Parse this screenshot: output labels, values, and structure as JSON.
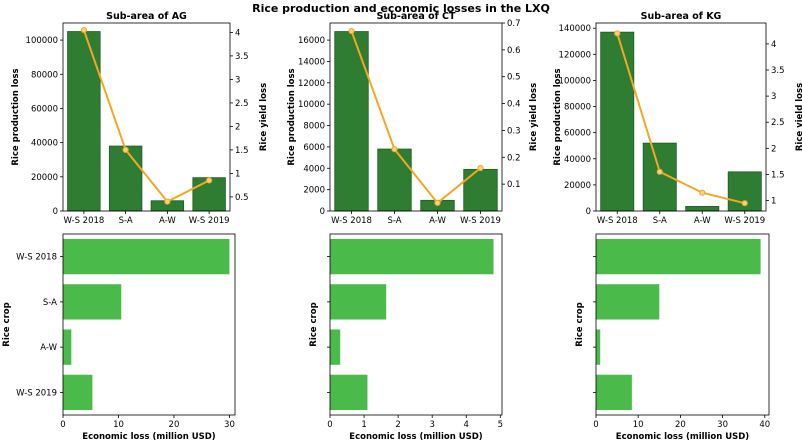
{
  "title": "Rice production and economic losses in the LXQ",
  "colors": {
    "bar_dark": "#2e7d32",
    "bar_dark_edge": "#1b5e20",
    "bar_light": "#4aba4a",
    "line": "#f5a623",
    "marker_face": "#f7d08a"
  },
  "chart_data": [
    {
      "type": "bar",
      "title": "Sub-area of AG",
      "categories": [
        "W-S 2018",
        "S-A",
        "A-W",
        "W-S 2019"
      ],
      "values": [
        105000,
        38000,
        6000,
        19500
      ],
      "ylabel": "Rice production loss",
      "ylim": [
        0,
        110000
      ],
      "yticks": [
        0,
        20000,
        40000,
        60000,
        80000,
        100000
      ],
      "secondary": {
        "type": "line",
        "ylabel": "Rice yield loss",
        "values": [
          4.05,
          1.5,
          0.4,
          0.85
        ],
        "ylim": [
          0.2,
          4.2
        ],
        "yticks": [
          0.5,
          1.0,
          1.5,
          2.0,
          2.5,
          3.0,
          3.5,
          4.0
        ]
      }
    },
    {
      "type": "bar",
      "title": "Sub-area of CT",
      "categories": [
        "W-S 2018",
        "S-A",
        "A-W",
        "W-S 2019"
      ],
      "values": [
        16800,
        5800,
        1000,
        3900
      ],
      "ylabel": "Rice production loss",
      "ylim": [
        0,
        17600
      ],
      "yticks": [
        0,
        2000,
        4000,
        6000,
        8000,
        10000,
        12000,
        14000,
        16000
      ],
      "secondary": {
        "type": "line",
        "ylabel": "Rice yield loss",
        "values": [
          0.67,
          0.23,
          0.03,
          0.16
        ],
        "ylim": [
          0.0,
          0.7
        ],
        "yticks": [
          0.1,
          0.2,
          0.3,
          0.4,
          0.5,
          0.6,
          0.7
        ]
      }
    },
    {
      "type": "bar",
      "title": "Sub-area of KG",
      "categories": [
        "W-S 2018",
        "S-A",
        "A-W",
        "W-S 2019"
      ],
      "values": [
        137000,
        52000,
        3500,
        30000
      ],
      "ylabel": "Rice production loss",
      "ylim": [
        0,
        144000
      ],
      "yticks": [
        0,
        20000,
        40000,
        60000,
        80000,
        100000,
        120000,
        140000
      ],
      "secondary": {
        "type": "line",
        "ylabel": "Rice yield loss",
        "values": [
          4.2,
          1.55,
          1.15,
          0.95
        ],
        "ylim": [
          0.8,
          4.4
        ],
        "yticks": [
          1.0,
          1.5,
          2.0,
          2.5,
          3.0,
          3.5,
          4.0
        ]
      }
    },
    {
      "type": "barh",
      "categories": [
        "W-S 2018",
        "S-A",
        "A-W",
        "W-S 2019"
      ],
      "values": [
        30,
        10.5,
        1.5,
        5.3
      ],
      "xlabel": "Economic loss (million USD)",
      "ylabel": "Rice crop",
      "xlim": [
        0,
        31
      ],
      "xticks": [
        0,
        10,
        20,
        30
      ]
    },
    {
      "type": "barh",
      "categories": [
        "W-S 2018",
        "S-A",
        "A-W",
        "W-S 2019"
      ],
      "values": [
        4.8,
        1.65,
        0.3,
        1.1
      ],
      "xlabel": "Economic loss (million USD)",
      "ylabel": "Rice crop",
      "xlim": [
        0,
        5.05
      ],
      "xticks": [
        0,
        1,
        2,
        3,
        4,
        5
      ]
    },
    {
      "type": "barh",
      "categories": [
        "W-S 2018",
        "S-A",
        "A-W",
        "W-S 2019"
      ],
      "values": [
        39,
        15,
        1,
        8.5
      ],
      "xlabel": "Economic loss (million USD)",
      "ylabel": "Rice crop",
      "xlim": [
        0,
        41
      ],
      "xticks": [
        0,
        10,
        20,
        30,
        40
      ]
    }
  ]
}
